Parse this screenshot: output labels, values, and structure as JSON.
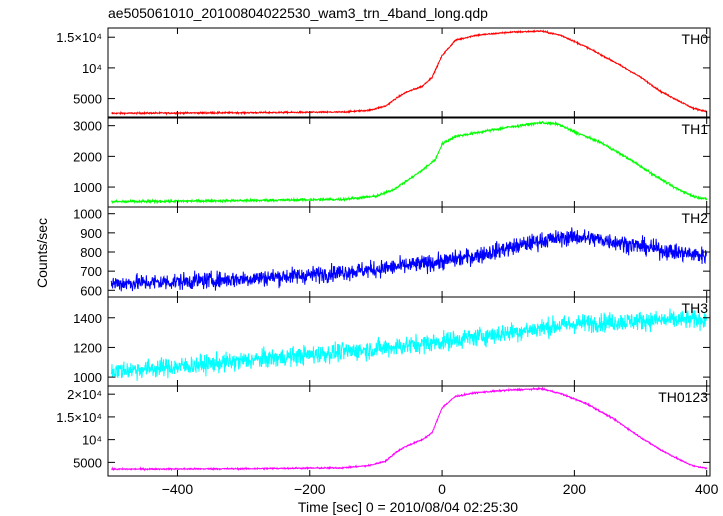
{
  "chart_data": {
    "type": "line",
    "title": "ae505061010_20100804022530_wam3_trn_4band_long.qdp",
    "xlabel": "Time [sec] 0 = 2010/08/04 02:25:30",
    "ylabel": "Counts/sec",
    "xlim": [
      -505,
      405
    ],
    "xticks": [
      -400,
      -200,
      0,
      200,
      400
    ],
    "xtick_labels": [
      "−400",
      "−200",
      "0",
      "200",
      "400"
    ],
    "grid": false,
    "panels": [
      {
        "name": "TH0",
        "color": "#ff0000",
        "ylim": [
          2000,
          16500
        ],
        "yticks": [
          5000,
          10000,
          15000
        ],
        "ytick_labels": [
          "5000",
          "10⁴",
          "1.5×10⁴"
        ],
        "noise": 60,
        "x": [
          -505,
          -300,
          -150,
          -110,
          -85,
          -70,
          -55,
          -30,
          -15,
          0,
          20,
          50,
          100,
          150,
          180,
          220,
          260,
          300,
          330,
          360,
          380,
          400
        ],
        "values": [
          2600,
          2700,
          2800,
          3100,
          3800,
          5000,
          6000,
          7000,
          8500,
          12000,
          14500,
          15300,
          15800,
          16000,
          15300,
          13300,
          11000,
          8500,
          6200,
          4500,
          3400,
          2900
        ]
      },
      {
        "name": "TH1",
        "color": "#00ff00",
        "ylim": [
          350,
          3250
        ],
        "yticks": [
          1000,
          2000,
          3000
        ],
        "ytick_labels": [
          "1000",
          "2000",
          "3000"
        ],
        "noise": 20,
        "x": [
          -505,
          -300,
          -150,
          -100,
          -75,
          -50,
          -30,
          -10,
          0,
          20,
          60,
          100,
          150,
          175,
          200,
          240,
          280,
          320,
          350,
          380,
          400
        ],
        "values": [
          520,
          560,
          600,
          700,
          900,
          1250,
          1550,
          1900,
          2400,
          2650,
          2800,
          2950,
          3100,
          3050,
          2800,
          2450,
          1950,
          1400,
          1000,
          700,
          600
        ]
      },
      {
        "name": "TH2",
        "color": "#0000ff",
        "ylim": [
          565,
          1035
        ],
        "yticks": [
          600,
          700,
          800,
          900,
          1000
        ],
        "ytick_labels": [
          "600",
          "700",
          "800",
          "900",
          "1000"
        ],
        "noise": 22,
        "x": [
          -505,
          -400,
          -300,
          -200,
          -100,
          0,
          50,
          100,
          150,
          200,
          250,
          300,
          350,
          400
        ],
        "values": [
          635,
          645,
          660,
          680,
          710,
          750,
          780,
          820,
          860,
          880,
          860,
          830,
          800,
          780
        ]
      },
      {
        "name": "TH3",
        "color": "#00ffff",
        "ylim": [
          940,
          1540
        ],
        "yticks": [
          1000,
          1200,
          1400
        ],
        "ytick_labels": [
          "1000",
          "1200",
          "1400"
        ],
        "noise": 32,
        "x": [
          -505,
          -400,
          -300,
          -200,
          -100,
          0,
          100,
          200,
          300,
          400
        ],
        "values": [
          1040,
          1070,
          1110,
          1150,
          1190,
          1240,
          1300,
          1360,
          1380,
          1390
        ]
      },
      {
        "name": "TH0123",
        "color": "#ff00ff",
        "ylim": [
          2000,
          21800
        ],
        "yticks": [
          5000,
          10000,
          15000,
          20000
        ],
        "ytick_labels": [
          "5000",
          "10⁴",
          "1.5×10⁴",
          "2×10⁴"
        ],
        "noise": 80,
        "x": [
          -505,
          -300,
          -150,
          -110,
          -85,
          -70,
          -55,
          -30,
          -15,
          0,
          20,
          50,
          100,
          150,
          180,
          220,
          260,
          300,
          330,
          360,
          380,
          400
        ],
        "values": [
          3500,
          3600,
          3800,
          4300,
          5300,
          7200,
          8500,
          10000,
          11500,
          17000,
          19500,
          20300,
          20900,
          21200,
          20100,
          17800,
          14500,
          10500,
          7800,
          5500,
          4200,
          3700
        ]
      }
    ]
  }
}
